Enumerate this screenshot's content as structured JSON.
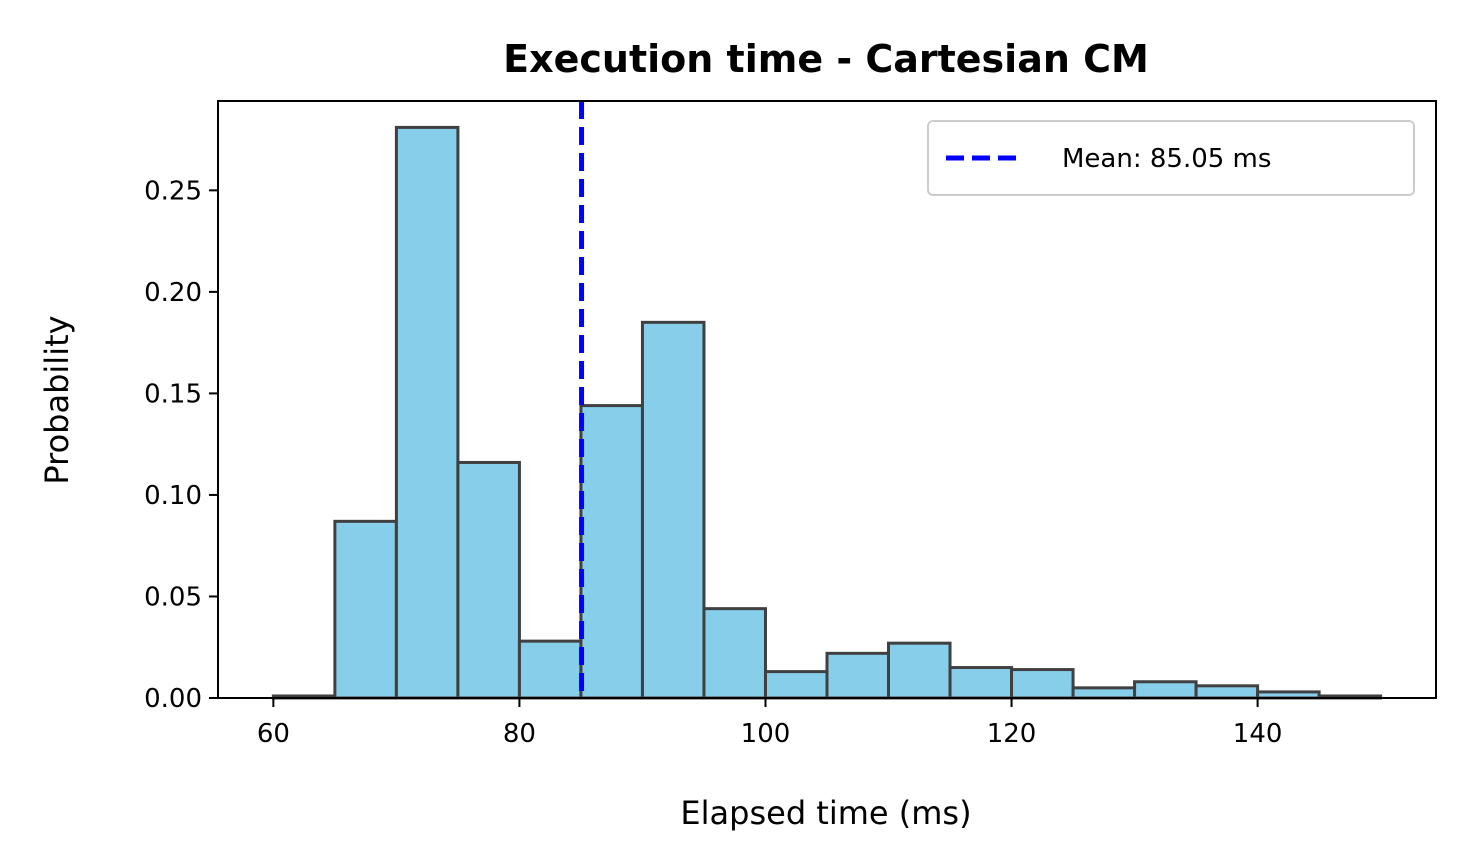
{
  "chart_data": {
    "type": "bar",
    "title": "Execution time - Cartesian CM",
    "xlabel": "Elapsed time (ms)",
    "ylabel": "Probability",
    "xlim": [
      55.5,
      154.5
    ],
    "ylim": [
      0,
      0.294
    ],
    "xticks": [
      60,
      80,
      100,
      120,
      140
    ],
    "xtick_labels": [
      "60",
      "80",
      "100",
      "120",
      "140"
    ],
    "yticks": [
      0,
      0.05,
      0.1,
      0.15,
      0.2,
      0.25
    ],
    "ytick_labels": [
      "0.00",
      "0.05",
      "0.10",
      "0.15",
      "0.20",
      "0.25"
    ],
    "bin_edges": [
      60,
      65,
      70,
      75,
      80,
      85,
      90,
      95,
      100,
      105,
      110,
      115,
      120,
      125,
      130,
      135,
      140,
      145,
      150
    ],
    "values": [
      0.001,
      0.087,
      0.281,
      0.116,
      0.028,
      0.144,
      0.185,
      0.044,
      0.013,
      0.022,
      0.027,
      0.015,
      0.014,
      0.005,
      0.008,
      0.006,
      0.003,
      0.001
    ],
    "bar_color": "#87CEEB",
    "edge_color": "#404040",
    "mean_line": {
      "x": 85.05,
      "color": "#0000FF",
      "style": "dashed"
    },
    "legend": {
      "label": "Mean: 85.05 ms",
      "position": "upper-right"
    },
    "grid": false
  }
}
